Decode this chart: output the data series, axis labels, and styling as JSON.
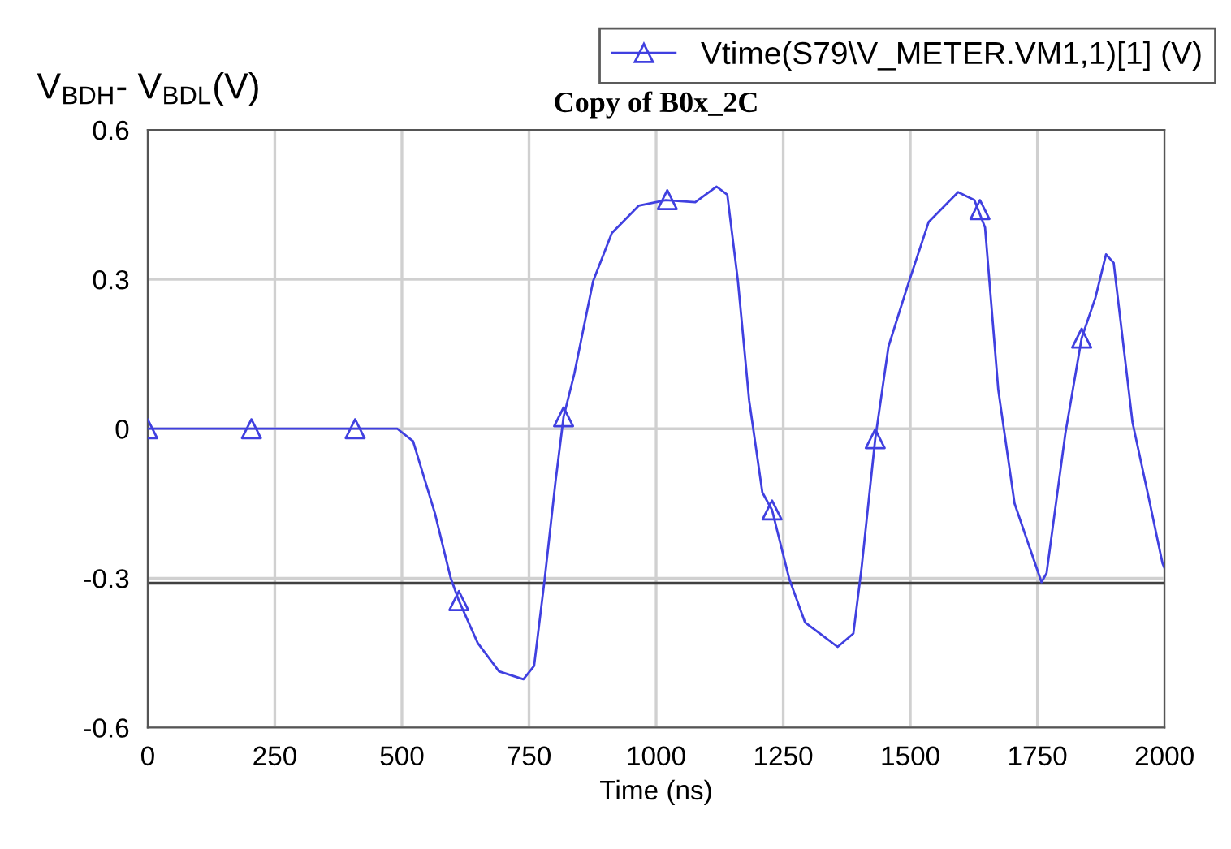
{
  "chart_data": {
    "type": "line",
    "title": "Copy of B0x_2C",
    "xlabel": "Time (ns)",
    "ylabel": "V$_{BDH}$- V$_{BDL}$(V)",
    "xlim": [
      0,
      2000
    ],
    "xticks": [
      0,
      250,
      500,
      750,
      1000,
      1250,
      1500,
      1750,
      2000
    ],
    "ylim": [
      -0.6,
      0.6
    ],
    "yticks": [
      -0.6,
      -0.3,
      0,
      0.3,
      0.6
    ],
    "grid": true,
    "legend": "top right",
    "marker": "triangle",
    "ref_lines": [
      {
        "axis": "y",
        "value": -0.31,
        "color": "#404040"
      }
    ],
    "series": [
      {
        "name": "Vtime(S79\\V_METER.VM1,1)[1] (V)",
        "color": "#4040e0",
        "marker": "none",
        "x": [
          0,
          491,
          522,
          565,
          596,
          612,
          649,
          691,
          739,
          760,
          781,
          802,
          818,
          839,
          876,
          913,
          966,
          1019,
          1077,
          1119,
          1140,
          1161,
          1183,
          1209,
          1228,
          1262,
          1293,
          1357,
          1388,
          1404,
          1431,
          1457,
          1494,
          1536,
          1594,
          1626,
          1647,
          1673,
          1705,
          1758,
          1768,
          1805,
          1837,
          1864,
          1885,
          1900,
          1937,
          1969,
          1996,
          2000
        ],
        "values": [
          0,
          0,
          -0.025,
          -0.17,
          -0.3,
          -0.345,
          -0.43,
          -0.487,
          -0.503,
          -0.476,
          -0.3,
          -0.107,
          0.024,
          0.11,
          0.296,
          0.393,
          0.448,
          0.459,
          0.455,
          0.486,
          0.47,
          0.296,
          0.057,
          -0.128,
          -0.163,
          -0.302,
          -0.389,
          -0.438,
          -0.411,
          -0.28,
          -0.02,
          0.165,
          0.285,
          0.415,
          0.475,
          0.459,
          0.404,
          0.078,
          -0.15,
          -0.308,
          -0.29,
          -0.009,
          0.182,
          0.263,
          0.35,
          0.333,
          0.013,
          -0.139,
          -0.27,
          -0.28
        ]
      },
      {
        "type": "scatter",
        "color": "#4040e0",
        "x": [
          0,
          204,
          408,
          612,
          818,
          1022,
          1228,
          1431,
          1637,
          1837
        ],
        "values": [
          0,
          0,
          0,
          -0.345,
          0.024,
          0.46,
          -0.163,
          -0.02,
          0.44,
          0.182
        ]
      }
    ]
  }
}
